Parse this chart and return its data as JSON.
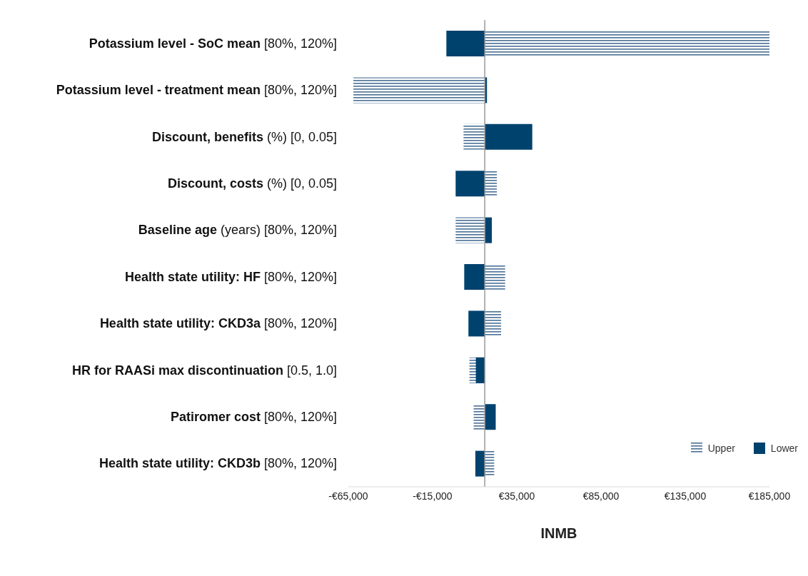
{
  "chart_data": {
    "type": "bar",
    "orientation": "horizontal",
    "xlabel": "INMB",
    "categories": [
      "Potassium level - SoC mean [80%, 120%]",
      "Potassium level - treatment mean [80%, 120%]",
      "Discount, benefits (%) [0, 0.05]",
      "Discount, costs (%) [0, 0.05]",
      "Baseline age (years) [80%, 120%]",
      "Health state utility: HF [80%, 120%]",
      "Health state utility: CKD3a [80%, 120%]",
      "HR for RAASi max discontinuation [0.5, 1.0]",
      "Patiromer cost [80%, 120%]",
      "Health state utility: CKD3b [80%, 120%]"
    ],
    "series": [
      {
        "name": "Upper",
        "color": "#4a7095",
        "base": [
          16000,
          16000,
          16000,
          16000,
          16000,
          16000,
          16000,
          16000,
          16000,
          16000
        ],
        "values": [
          169000,
          -78000,
          -12600,
          7200,
          -17300,
          12100,
          9700,
          -9100,
          -6600,
          5600
        ]
      },
      {
        "name": "Lower",
        "color": "#00426e",
        "base": [
          16000,
          16000,
          16000,
          16000,
          16000,
          16000,
          16000,
          16000,
          16000,
          16000
        ],
        "values": [
          -22800,
          1300,
          28200,
          -17300,
          4200,
          -12200,
          -9700,
          -5300,
          6500,
          -5600
        ]
      }
    ],
    "xlim": [
      -65000,
      185000
    ],
    "xticks": [
      {
        "value": -65000,
        "label": "-€65,000"
      },
      {
        "value": -15000,
        "label": "-€15,000"
      },
      {
        "value": 35000,
        "label": "€35,000"
      },
      {
        "value": 85000,
        "label": "€85,000"
      },
      {
        "value": 135000,
        "label": "€135,000"
      },
      {
        "value": 185000,
        "label": "€185,000"
      }
    ],
    "ref_lines": [
      {
        "axis": "x",
        "value": 16000,
        "color": "#999999"
      }
    ],
    "grid": false,
    "legend": "bottom right"
  }
}
